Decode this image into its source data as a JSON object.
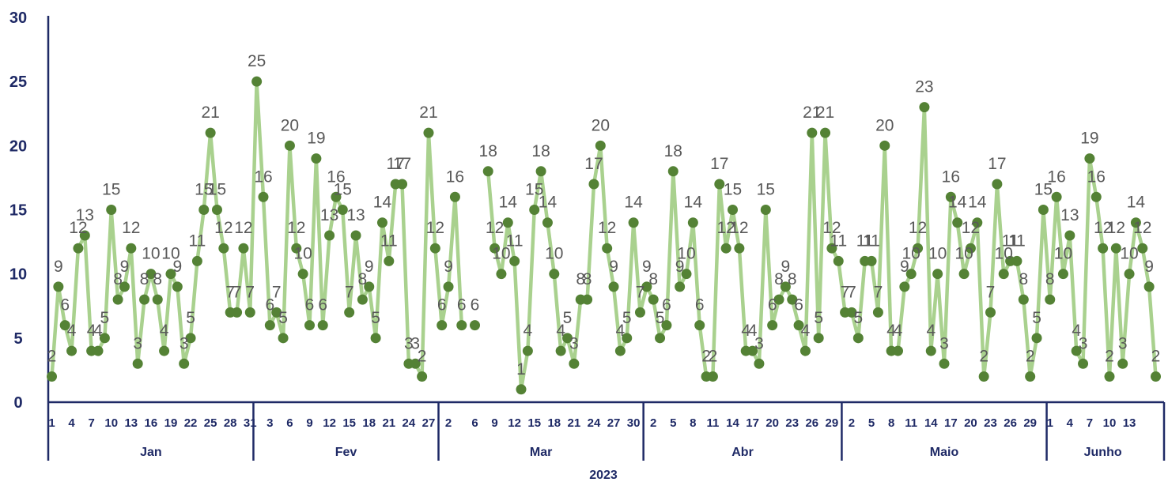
{
  "chart_data": {
    "type": "line",
    "xlabel": "2023",
    "ylim": [
      0,
      30
    ],
    "yticks": [
      "0",
      "5",
      "10",
      "15",
      "20",
      "25",
      "30"
    ],
    "grid": false,
    "legend": "none",
    "colors": {
      "line": "#a9d18e",
      "marker": "#548235",
      "axis": "#1f2a66",
      "label": "#595959"
    },
    "months": [
      {
        "name": "Jan",
        "day_ticks": [
          "1",
          "4",
          "7",
          "10",
          "13",
          "16",
          "19",
          "22",
          "25",
          "28",
          "31"
        ]
      },
      {
        "name": "Fev",
        "day_ticks": [
          "3",
          "6",
          "9",
          "12",
          "15",
          "18",
          "21",
          "24",
          "27"
        ]
      },
      {
        "name": "Mar",
        "day_ticks": [
          "2",
          "6",
          "9",
          "12",
          "15",
          "18",
          "21",
          "24",
          "27",
          "30"
        ]
      },
      {
        "name": "Abr",
        "day_ticks": [
          "2",
          "5",
          "8",
          "11",
          "14",
          "17",
          "20",
          "23",
          "26",
          "29"
        ]
      },
      {
        "name": "Maio",
        "day_ticks": [
          "2",
          "5",
          "8",
          "11",
          "14",
          "17",
          "20",
          "23",
          "26",
          "29"
        ]
      },
      {
        "name": "Junho",
        "day_ticks": [
          "1",
          "4",
          "7",
          "10",
          "13"
        ]
      }
    ],
    "series": [
      {
        "values": [
          2,
          9,
          6,
          4,
          12,
          13,
          4,
          4,
          5,
          15,
          8,
          9,
          12,
          3,
          8,
          10,
          8,
          4,
          10,
          9,
          3,
          5,
          11,
          15,
          21,
          15,
          12,
          7,
          7,
          12,
          7,
          25,
          16,
          6,
          7,
          5,
          20,
          12,
          10,
          6,
          19,
          6,
          13,
          16,
          15,
          7,
          13,
          8,
          9,
          5,
          14,
          11,
          17,
          17,
          3,
          3,
          2,
          21,
          12,
          6,
          9,
          16,
          6,
          null,
          6,
          null,
          18,
          12,
          10,
          14,
          11,
          1,
          4,
          15,
          18,
          14,
          10,
          4,
          5,
          3,
          8,
          8,
          17,
          20,
          12,
          9,
          4,
          5,
          14,
          7,
          9,
          8,
          5,
          6,
          18,
          9,
          10,
          14,
          6,
          2,
          2,
          17,
          12,
          15,
          12,
          4,
          4,
          3,
          15,
          6,
          8,
          9,
          8,
          6,
          4,
          21,
          5,
          21,
          12,
          11,
          7,
          7,
          5,
          11,
          11,
          7,
          20,
          4,
          4,
          9,
          10,
          12,
          23,
          4,
          10,
          3,
          16,
          14,
          10,
          12,
          14,
          2,
          7,
          17,
          10,
          11,
          11,
          8,
          2,
          5,
          15,
          8,
          16,
          10,
          13,
          4,
          3,
          19,
          16,
          12,
          2,
          12,
          3,
          10,
          14,
          12,
          9,
          2
        ]
      }
    ]
  }
}
